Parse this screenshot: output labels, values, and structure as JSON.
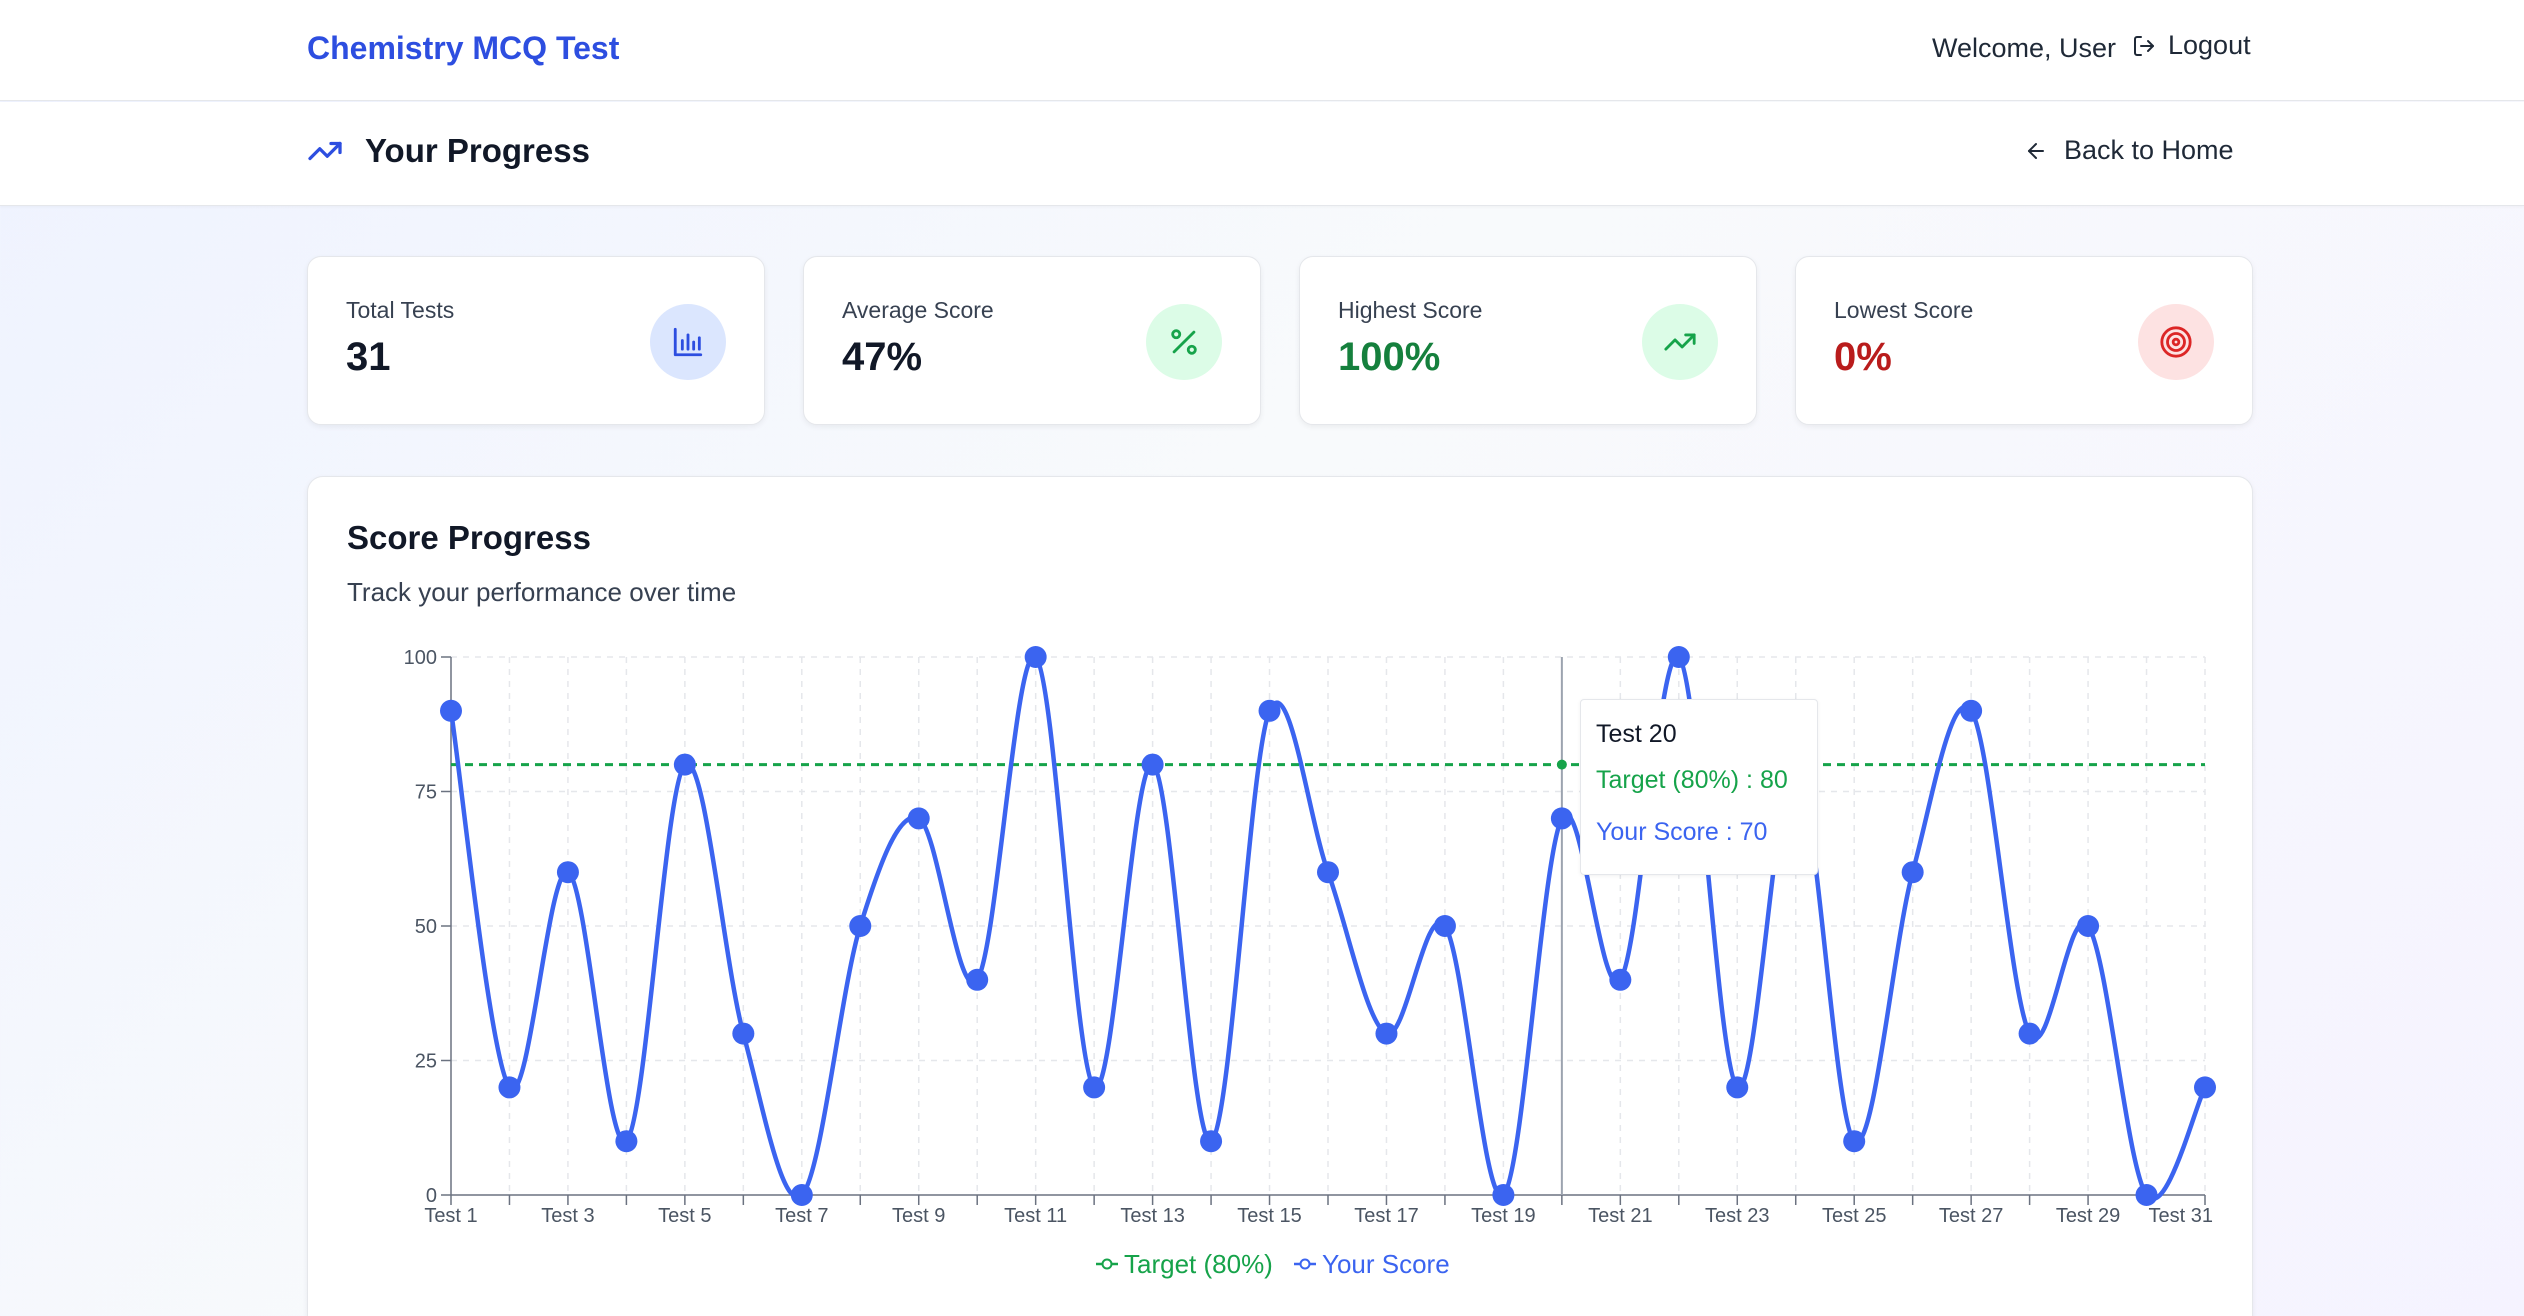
{
  "app": {
    "title": "Chemistry MCQ Test",
    "welcome": "Welcome, User",
    "logout_label": "Logout"
  },
  "page": {
    "title": "Your Progress",
    "back_label": "Back to Home"
  },
  "stats": [
    {
      "label": "Total Tests",
      "value": "31",
      "icon": "bar-chart-icon",
      "value_color": "#111827",
      "icon_bg": "#dbe6fe",
      "icon_color": "#2d4ee0"
    },
    {
      "label": "Average Score",
      "value": "47%",
      "icon": "percent-icon",
      "value_color": "#111827",
      "icon_bg": "#dcfce7",
      "icon_color": "#16a34a"
    },
    {
      "label": "Highest Score",
      "value": "100%",
      "icon": "trending-up-icon",
      "value_color": "#15803d",
      "icon_bg": "#dcfce7",
      "icon_color": "#16a34a"
    },
    {
      "label": "Lowest Score",
      "value": "0%",
      "icon": "target-icon",
      "value_color": "#b91c1c",
      "icon_bg": "#fde2e2",
      "icon_color": "#dc2626"
    }
  ],
  "chart_section": {
    "title": "Score Progress",
    "subtitle": "Track your performance over time"
  },
  "tooltip": {
    "title": "Test 20",
    "target_line": "Target (80%) : 80",
    "score_line": "Your Score : 70"
  },
  "chart_data": {
    "type": "line",
    "categories": [
      "Test 1",
      "Test 2",
      "Test 3",
      "Test 4",
      "Test 5",
      "Test 6",
      "Test 7",
      "Test 8",
      "Test 9",
      "Test 10",
      "Test 11",
      "Test 12",
      "Test 13",
      "Test 14",
      "Test 15",
      "Test 16",
      "Test 17",
      "Test 18",
      "Test 19",
      "Test 20",
      "Test 21",
      "Test 22",
      "Test 23",
      "Test 24",
      "Test 25",
      "Test 26",
      "Test 27",
      "Test 28",
      "Test 29",
      "Test 30",
      "Test 31"
    ],
    "tick_labels": [
      "Test 1",
      "Test 3",
      "Test 5",
      "Test 7",
      "Test 9",
      "Test 11",
      "Test 13",
      "Test 15",
      "Test 17",
      "Test 19",
      "Test 21",
      "Test 23",
      "Test 25",
      "Test 27",
      "Test 29",
      "Test 31"
    ],
    "y_ticks": [
      0,
      25,
      50,
      75,
      100
    ],
    "ylim": [
      0,
      100
    ],
    "grid": true,
    "legend": "bottom-center",
    "series": [
      {
        "name": "Target (80%)",
        "color": "#16a34a",
        "dashed": true,
        "values": [
          80,
          80,
          80,
          80,
          80,
          80,
          80,
          80,
          80,
          80,
          80,
          80,
          80,
          80,
          80,
          80,
          80,
          80,
          80,
          80,
          80,
          80,
          80,
          80,
          80,
          80,
          80,
          80,
          80,
          80,
          80
        ]
      },
      {
        "name": "Your Score",
        "color": "#3b64f0",
        "dashed": false,
        "values": [
          90,
          20,
          60,
          10,
          80,
          30,
          0,
          50,
          70,
          40,
          100,
          20,
          80,
          10,
          90,
          60,
          30,
          50,
          0,
          70,
          40,
          100,
          20,
          80,
          10,
          60,
          90,
          30,
          50,
          0,
          20
        ]
      }
    ],
    "highlight_category": "Test 20"
  }
}
